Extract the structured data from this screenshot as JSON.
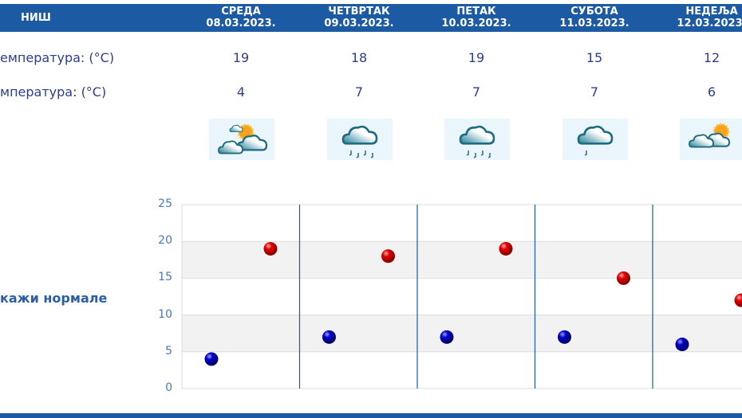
{
  "header": {
    "city": "НИШ",
    "days": [
      {
        "name": "СРЕДА",
        "date": "08.03.2023."
      },
      {
        "name": "ЧЕТВРТАК",
        "date": "09.03.2023."
      },
      {
        "name": "ПЕТАК",
        "date": "10.03.2023."
      },
      {
        "name": "СУБОТА",
        "date": "11.03.2023."
      },
      {
        "name": "НЕДЕЉА",
        "date": "12.03.2023."
      }
    ]
  },
  "rows": {
    "max_label": "емпература: (°C)",
    "min_label": "мпература: (°C)"
  },
  "max": [
    "19",
    "18",
    "19",
    "15",
    "12"
  ],
  "min": [
    "4",
    "7",
    "7",
    "7",
    "6"
  ],
  "icons": [
    "partly-cloudy-sun-icon",
    "rain-cloud-icon",
    "rain-cloud-icon",
    "light-rain-cloud-icon",
    "sun-clouds-icon"
  ],
  "norm_link": "кажи нормале",
  "colors": {
    "header": "#1c5aa4",
    "max": "#e00000",
    "min": "#0000c8"
  },
  "chart_data": {
    "type": "scatter",
    "yticks": [
      "0",
      "5",
      "10",
      "15",
      "20",
      "25"
    ],
    "ylim": [
      0,
      25
    ],
    "categories": [
      "08.03.2023.",
      "09.03.2023.",
      "10.03.2023.",
      "11.03.2023.",
      "12.03.2023."
    ],
    "series": [
      {
        "values": [
          19,
          18,
          19,
          15,
          12
        ],
        "color": "#e00000"
      },
      {
        "values": [
          4,
          7,
          7,
          7,
          6
        ],
        "color": "#0000c8"
      }
    ],
    "grid": true
  }
}
